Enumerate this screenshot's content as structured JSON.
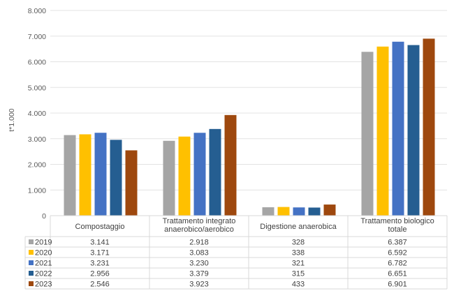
{
  "chart_data": {
    "type": "bar",
    "ylabel": "t*1.000",
    "ylim": [
      0,
      8000
    ],
    "yticks": [
      "0",
      "1.000",
      "2.000",
      "3.000",
      "4.000",
      "5.000",
      "6.000",
      "7.000",
      "8.000"
    ],
    "grid": true,
    "legend_placement": "data-table-left",
    "categories": [
      [
        "Compostaggio"
      ],
      [
        "Trattamento integrato",
        "anaerobico/aerobico"
      ],
      [
        "Digestione anaerobica"
      ],
      [
        "Trattamento biologico",
        "totale"
      ]
    ],
    "series": [
      {
        "name": "2019",
        "color": "#A5A5A5",
        "values": [
          3141,
          2918,
          328,
          6387
        ],
        "labels": [
          "3.141",
          "2.918",
          "328",
          "6.387"
        ]
      },
      {
        "name": "2020",
        "color": "#FFC000",
        "values": [
          3171,
          3083,
          338,
          6592
        ],
        "labels": [
          "3.171",
          "3.083",
          "338",
          "6.592"
        ]
      },
      {
        "name": "2021",
        "color": "#4472C4",
        "values": [
          3231,
          3230,
          321,
          6782
        ],
        "labels": [
          "3.231",
          "3.230",
          "321",
          "6.782"
        ]
      },
      {
        "name": "2022",
        "color": "#255E91",
        "values": [
          2956,
          3379,
          315,
          6651
        ],
        "labels": [
          "2.956",
          "3.379",
          "315",
          "6.651"
        ]
      },
      {
        "name": "2023",
        "color": "#9E480E",
        "values": [
          2546,
          3923,
          433,
          6901
        ],
        "labels": [
          "2.546",
          "3.923",
          "433",
          "6.901"
        ]
      }
    ]
  }
}
